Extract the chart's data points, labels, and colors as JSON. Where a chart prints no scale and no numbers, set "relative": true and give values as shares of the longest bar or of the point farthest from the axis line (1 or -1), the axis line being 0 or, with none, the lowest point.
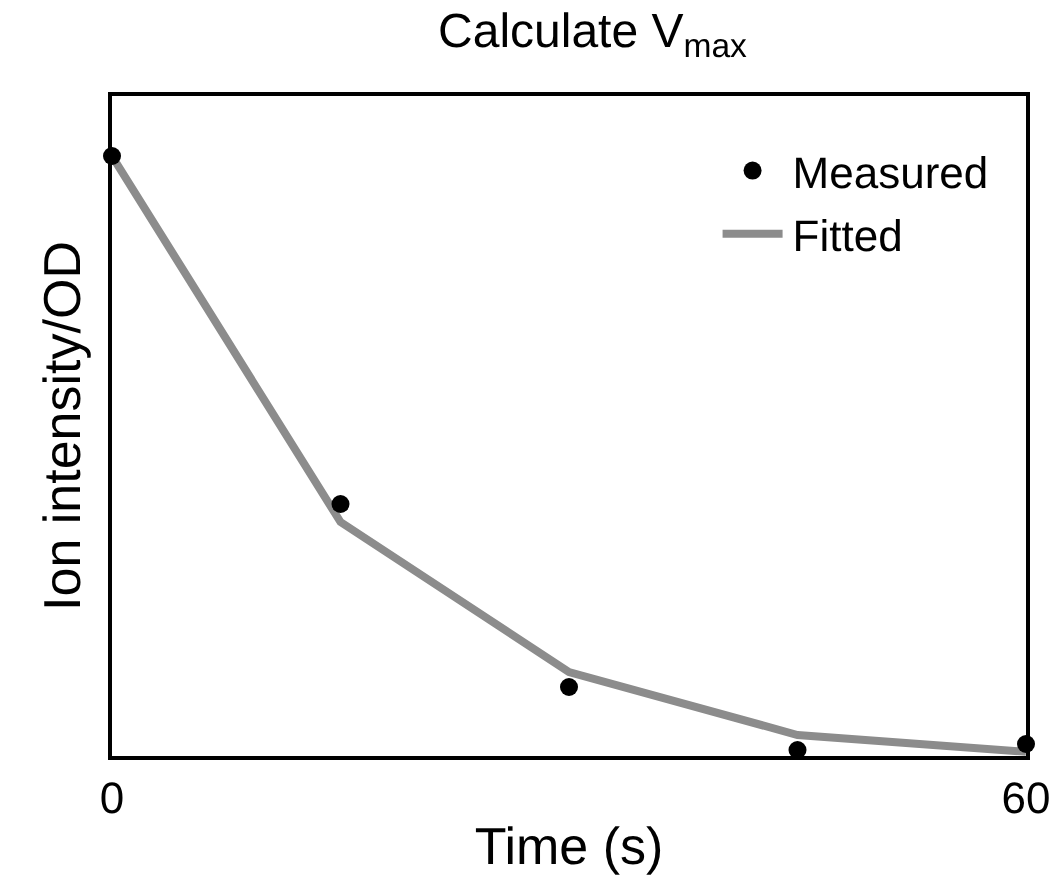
{
  "chart_data": {
    "type": "scatter",
    "title": "Calculate V$_{max}$",
    "xlabel": "Time (s)",
    "ylabel": "Ion intensity/OD",
    "relative": true,
    "x": [
      0,
      15,
      30,
      45,
      60
    ],
    "xlim": [
      0,
      60
    ],
    "xticks": [
      0,
      60
    ],
    "legend": "top right",
    "series": [
      {
        "name": "Measured",
        "color": "#000000",
        "marker": "circle",
        "values": [
          1,
          0.42,
          0.115,
          0.01,
          0.02
        ]
      },
      {
        "name": "Fitted",
        "type": "line",
        "color": "#8c8c8c",
        "marker": "none",
        "line_style": "solid",
        "values": [
          1,
          0.39,
          0.14,
          0.035,
          0.007
        ]
      }
    ]
  }
}
